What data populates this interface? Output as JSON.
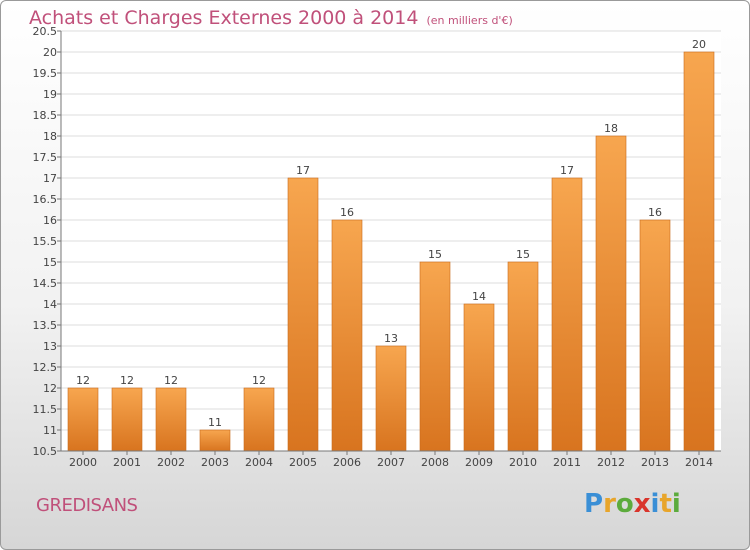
{
  "title": "Achats et Charges Externes 2000 à 2014",
  "unit": "(en milliers d'€)",
  "place": "GREDISANS",
  "brand": {
    "letters": [
      "P",
      "r",
      "o",
      "x",
      "i",
      "t",
      "i"
    ],
    "colors": [
      "#3a8fd6",
      "#e8a52a",
      "#5cab3c",
      "#d9342b",
      "#3a8fd6",
      "#e8a52a",
      "#5cab3c"
    ]
  },
  "colors": {
    "bar_light": "#f7a64f",
    "bar_dark": "#d8741f",
    "title": "#c0507a"
  },
  "chart_data": {
    "type": "bar",
    "categories": [
      "2000",
      "2001",
      "2002",
      "2003",
      "2004",
      "2005",
      "2006",
      "2007",
      "2008",
      "2009",
      "2010",
      "2011",
      "2012",
      "2013",
      "2014"
    ],
    "values": [
      12,
      12,
      12,
      11,
      12,
      17,
      16,
      13,
      15,
      14,
      15,
      17,
      18,
      16,
      20
    ],
    "value_labels": [
      "12",
      "12",
      "12",
      "11",
      "12",
      "17",
      "16",
      "13",
      "15",
      "14",
      "15",
      "17",
      "18",
      "16",
      "20"
    ],
    "y_ticks": [
      "10.5",
      "11",
      "11.5",
      "12",
      "12.5",
      "13",
      "13.5",
      "14",
      "14.5",
      "15",
      "15.5",
      "16",
      "16.5",
      "17",
      "17.5",
      "18",
      "18.5",
      "19",
      "19.5",
      "20",
      "20.5"
    ],
    "ylim": [
      10.5,
      20.5
    ],
    "grid": true,
    "title": "Achats et Charges Externes 2000 à 2014",
    "xlabel": "",
    "ylabel": ""
  }
}
